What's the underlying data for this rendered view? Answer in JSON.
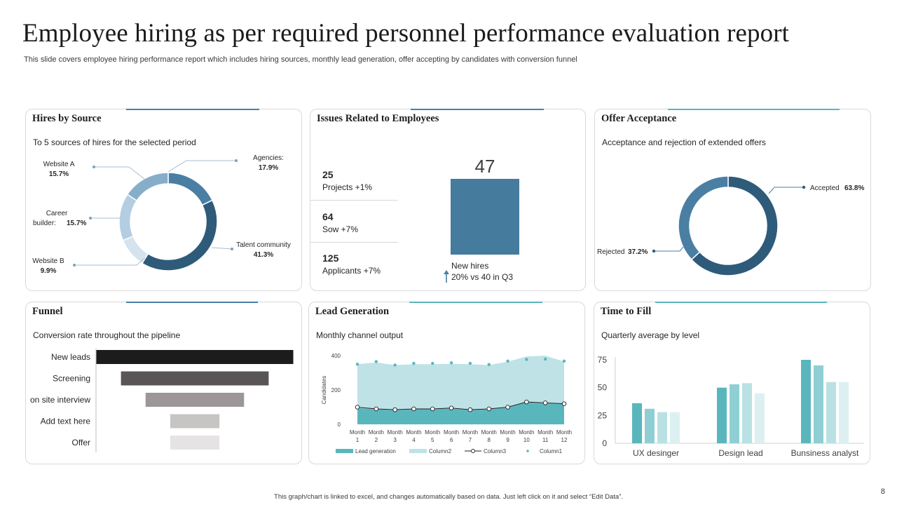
{
  "header": {
    "title": "Employee hiring as per required personnel performance evaluation report",
    "subtitle": "This slide covers employee hiring performance report which includes hiring sources, monthly lead generation, offer accepting by candidates with conversion funnel"
  },
  "colors": {
    "dark_blue": "#2f5b7a",
    "mid_blue": "#4a7fa3",
    "light_blue": "#86aecb",
    "pale_blue": "#b4cde0",
    "teal": "#5ab6bd",
    "teal_light": "#bfe2e6",
    "teal_accent": "#8fcfd3"
  },
  "panels": {
    "hires": {
      "title": "Hires by Source",
      "subtitle": "To 5 sources of hires for the selected period"
    },
    "issues": {
      "title": "Issues Related to Employees",
      "stats": [
        {
          "value": "25",
          "label": "Projects +1%"
        },
        {
          "value": "64",
          "label": "Sow +7%"
        },
        {
          "value": "125",
          "label": "Applicants  +7%"
        }
      ],
      "new_hires_value": "47",
      "new_hires_label": "New hires",
      "new_hires_change": "20% vs 40 in Q3"
    },
    "offer": {
      "title": "Offer Acceptance",
      "subtitle": "Acceptance and rejection of extended offers"
    },
    "funnel": {
      "title": "Funnel",
      "subtitle": "Conversion  rate throughout  the pipeline"
    },
    "lead": {
      "title": "Lead Generation",
      "subtitle": "Monthly channel output"
    },
    "time": {
      "title": "Time to Fill",
      "subtitle": "Quarterly average  by level"
    }
  },
  "chart_data": [
    {
      "type": "pie",
      "title": "Hires by Source",
      "slices": [
        {
          "name": "Agencies:",
          "value": 17.9,
          "label": "17.9%",
          "color": "#4a7fa3"
        },
        {
          "name": "Talent community",
          "value": 41.3,
          "label": "41.3%",
          "color": "#2f5b7a"
        },
        {
          "name": "Website B",
          "value": 9.9,
          "label": "9.9%",
          "color": "#d5e3ee"
        },
        {
          "name": "Career builder:",
          "value": 15.7,
          "label": "15.7%",
          "color": "#b4cde0"
        },
        {
          "name": "Website A",
          "value": 15.7,
          "label": "15.7%",
          "color": "#86aecb"
        }
      ]
    },
    {
      "type": "bar",
      "title": "Issues Related to Employees",
      "categories": [
        "New hires"
      ],
      "values": [
        47
      ]
    },
    {
      "type": "pie",
      "title": "Offer Acceptance",
      "slices": [
        {
          "name": "Accepted",
          "value": 63.8,
          "label": "63.8%",
          "color": "#2f5b7a"
        },
        {
          "name": "Rejected",
          "value": 37.2,
          "label": "37.2%",
          "color": "#4a7fa3"
        }
      ]
    },
    {
      "type": "bar",
      "title": "Funnel",
      "orientation": "horizontal",
      "categories": [
        "New leads",
        "Screening",
        "on site interview",
        "Add text here",
        "Offer"
      ],
      "values": [
        100,
        75,
        50,
        25,
        25
      ],
      "colors": [
        "#1c1c1c",
        "#595556",
        "#9c9697",
        "#c7c4c4",
        "#e5e3e3"
      ]
    },
    {
      "type": "area",
      "title": "Lead Generation",
      "categories": [
        "Month 1",
        "Month 2",
        "Month 3",
        "Month 4",
        "Month 5",
        "Month 6",
        "Month 7",
        "Month 8",
        "Month 9",
        "Month 10",
        "Month 11",
        "Month 12"
      ],
      "ylabel": "Candidates",
      "ylim": [
        0,
        400
      ],
      "yticks": [
        0,
        200,
        400
      ],
      "legend": "bottom",
      "series": [
        {
          "name": "Lead generation",
          "kind": "area",
          "color": "#5ab6bd",
          "values": [
            95,
            88,
            82,
            88,
            88,
            92,
            83,
            87,
            98,
            128,
            122,
            118
          ]
        },
        {
          "name": "Column2",
          "kind": "area",
          "color": "#bfe2e6",
          "values": [
            350,
            360,
            345,
            350,
            350,
            352,
            350,
            345,
            365,
            395,
            400,
            365
          ]
        },
        {
          "name": "Column3",
          "kind": "line",
          "color": "#222222",
          "values": [
            100,
            90,
            85,
            90,
            90,
            95,
            85,
            90,
            100,
            130,
            125,
            120
          ]
        },
        {
          "name": "Column1",
          "kind": "scatter",
          "color": "#5ab6bd",
          "values": [
            350,
            365,
            345,
            355,
            355,
            358,
            355,
            348,
            368,
            378,
            380,
            368
          ]
        }
      ]
    },
    {
      "type": "bar",
      "title": "Time to Fill",
      "categories": [
        "UX desinger",
        "Design lead",
        "Bunsiness analyst"
      ],
      "ylim": [
        0,
        75
      ],
      "yticks": [
        0,
        25,
        50,
        75
      ],
      "series": [
        {
          "values": [
            36,
            50,
            75
          ],
          "color": "#5ab6bd"
        },
        {
          "values": [
            31,
            53,
            70
          ],
          "color": "#8fcfd3"
        },
        {
          "values": [
            28,
            54,
            55
          ],
          "color": "#b9e1e4"
        },
        {
          "values": [
            28,
            45,
            55
          ],
          "color": "#dcf0f1"
        }
      ]
    }
  ],
  "footer": {
    "note": "This graph/chart is linked to excel, and changes automatically based on data. Just left click on it and select “Edit Data”.",
    "page": "8"
  }
}
